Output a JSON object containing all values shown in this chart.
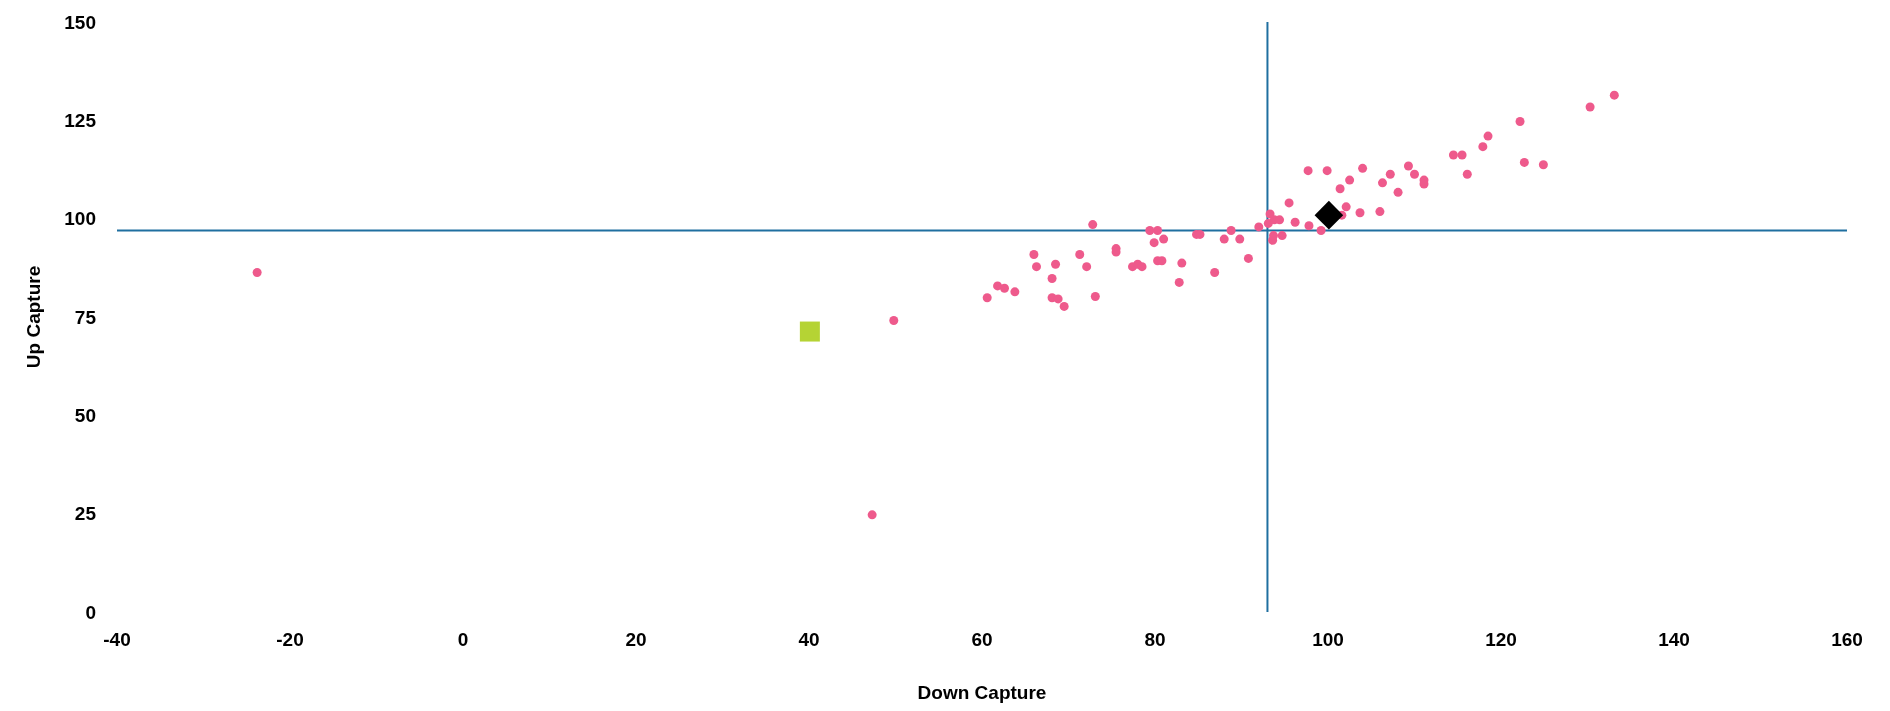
{
  "chart_data": {
    "type": "scatter",
    "xlabel": "Down Capture",
    "ylabel": "Up Capture",
    "xlim": [
      -40,
      160
    ],
    "xticks": [
      -40,
      -20,
      0,
      20,
      40,
      60,
      80,
      100,
      120,
      140,
      160
    ],
    "ylim": [
      0,
      150
    ],
    "yticks": [
      0,
      25,
      50,
      75,
      100,
      125,
      150
    ],
    "grid": false,
    "series": [
      {
        "color": "#ee5a8c",
        "marker": "circle",
        "x": [
          -23.8,
          47.3,
          49.8,
          60.6,
          61.8,
          62.6,
          63.8,
          66.0,
          66.3,
          68.1,
          68.1,
          68.5,
          68.8,
          69.5,
          71.3,
          72.1,
          72.8,
          73.1,
          75.5,
          75.5,
          77.4,
          78.0,
          78.5,
          79.4,
          79.9,
          80.3,
          80.3,
          80.8,
          81.0,
          82.8,
          83.1,
          84.8,
          85.2,
          86.9,
          88.0,
          88.8,
          89.8,
          90.8,
          92.0,
          93.1,
          93.3,
          93.6,
          93.7,
          93.8,
          94.4,
          94.7,
          95.5,
          96.2,
          97.7,
          97.8,
          99.2,
          99.9,
          101.6,
          101.4,
          102.1,
          102.5,
          103.7,
          104.0,
          106.0,
          106.3,
          107.2,
          108.1,
          109.3,
          110.0,
          111.1,
          111.1,
          114.5,
          115.5,
          116.1,
          117.9,
          118.5,
          122.2,
          122.7,
          124.9,
          130.3,
          133.1
        ],
        "values": [
          86.3,
          24.7,
          74.1,
          79.9,
          82.9,
          82.3,
          81.4,
          90.9,
          87.8,
          79.9,
          84.8,
          88.4,
          79.6,
          77.7,
          90.9,
          87.8,
          98.5,
          80.2,
          92.4,
          91.5,
          87.8,
          88.4,
          87.8,
          97.0,
          93.9,
          97.0,
          89.3,
          89.3,
          94.8,
          83.8,
          88.7,
          96.0,
          96.0,
          86.3,
          94.8,
          97.0,
          94.8,
          89.9,
          97.9,
          98.8,
          101.2,
          94.5,
          95.7,
          99.7,
          99.7,
          95.7,
          104.0,
          99.1,
          112.2,
          98.2,
          97.0,
          112.2,
          100.9,
          107.6,
          103.0,
          109.8,
          101.5,
          112.8,
          101.8,
          109.1,
          111.3,
          106.7,
          113.4,
          111.3,
          109.8,
          108.8,
          116.2,
          116.2,
          111.3,
          118.3,
          121.0,
          124.7,
          114.3,
          113.7,
          128.4,
          131.4
        ]
      },
      {
        "color": "#b5d334",
        "marker": "square",
        "x": [
          40.1
        ],
        "values": [
          71.3
        ]
      },
      {
        "color": "#000000",
        "marker": "diamond",
        "x": [
          100.1
        ],
        "values": [
          100.9
        ]
      }
    ],
    "ref_lines": [
      {
        "axis": "x",
        "value": 93,
        "color": "#1f6fa0"
      },
      {
        "axis": "y",
        "value": 97,
        "color": "#1f6fa0"
      }
    ]
  }
}
